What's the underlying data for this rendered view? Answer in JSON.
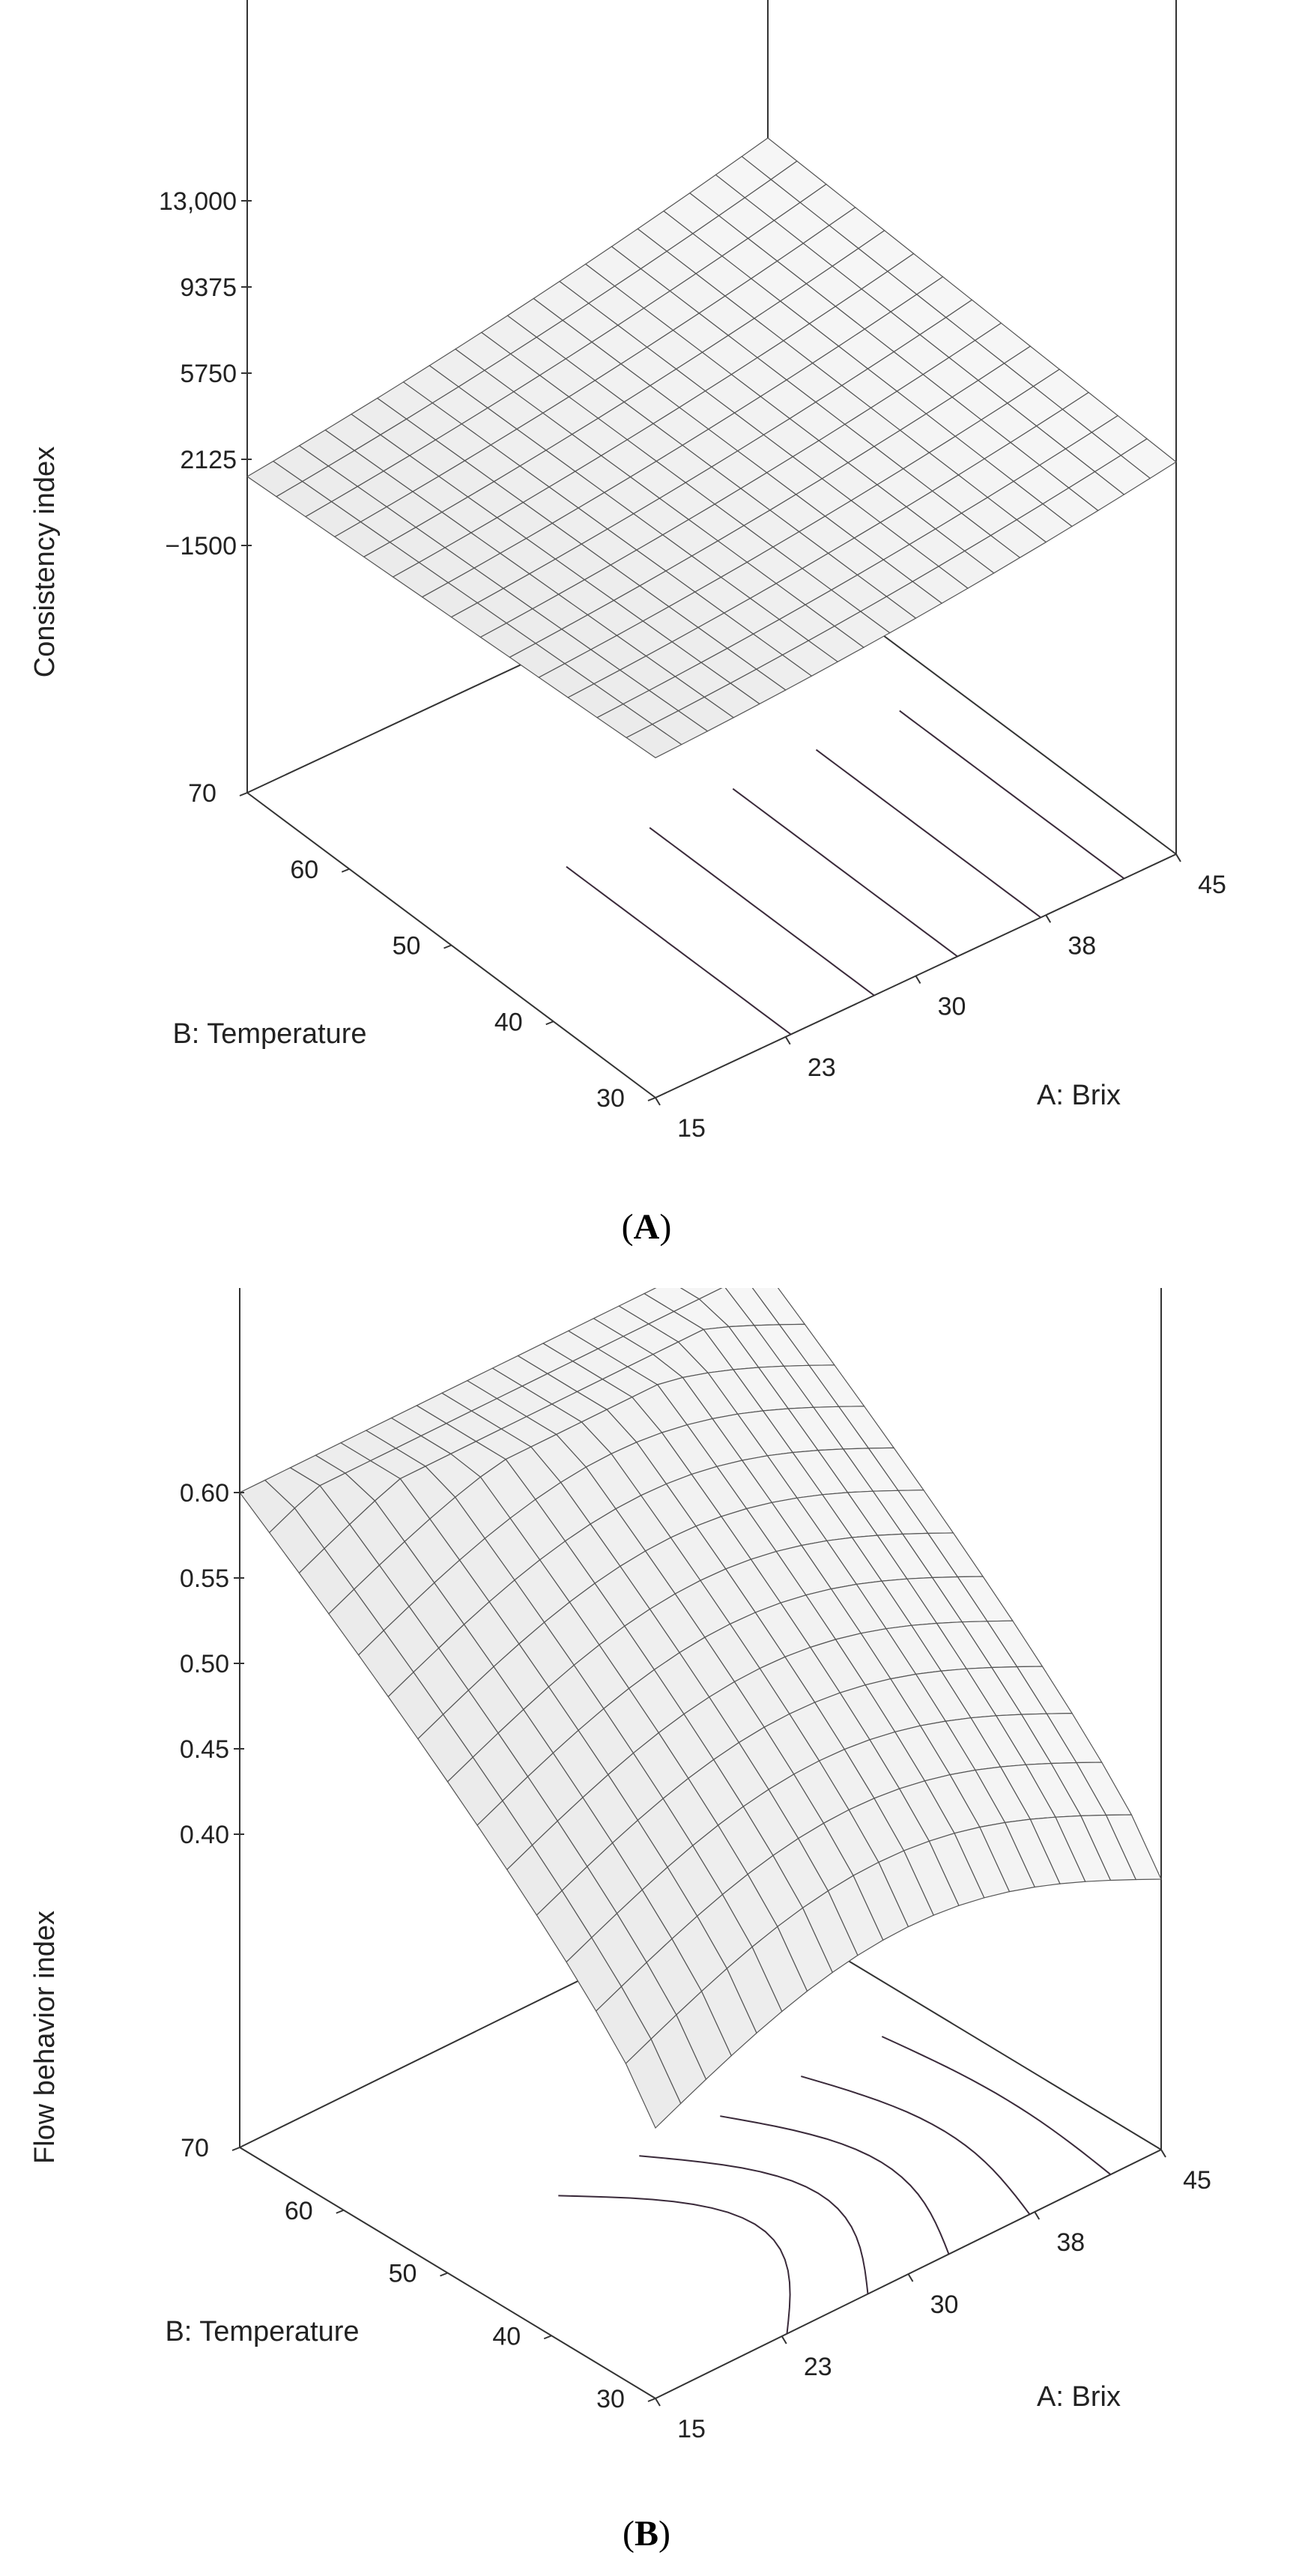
{
  "chart_data": [
    {
      "type": "surface",
      "caption": "A",
      "zlabel": "Consistency index",
      "xlabel": "A: Brix",
      "ylabel": "B: Temperature",
      "x_ticks": [
        "15",
        "23",
        "30",
        "38",
        "45"
      ],
      "y_ticks": [
        "30",
        "40",
        "50",
        "60",
        "70"
      ],
      "z_ticks": [
        "13,000",
        "9375",
        "5750",
        "2125",
        "−1500"
      ],
      "xlim": [
        15,
        45
      ],
      "ylim": [
        30,
        70
      ],
      "zlim": [
        -1500,
        13000
      ],
      "corner_values": {
        "brix_15_temp_30": 2400,
        "brix_45_temp_30": 4600,
        "brix_15_temp_70": 1400,
        "brix_45_temp_70": 5400
      }
    },
    {
      "type": "surface",
      "caption": "B",
      "zlabel": "Flow behavior index",
      "xlabel": "A: Brix",
      "ylabel": "B: Temperature",
      "x_ticks": [
        "15",
        "23",
        "30",
        "38",
        "45"
      ],
      "y_ticks": [
        "30",
        "40",
        "50",
        "60",
        "70"
      ],
      "z_ticks": [
        "0.60",
        "0.55",
        "0.50",
        "0.45",
        "0.40"
      ],
      "xlim": [
        15,
        45
      ],
      "ylim": [
        30,
        70
      ],
      "zlim": [
        0.4,
        0.6
      ],
      "corner_values": {
        "brix_15_temp_30": 0.375,
        "brix_45_temp_30": 0.375,
        "brix_15_temp_70": 0.6,
        "brix_45_temp_70": 0.6
      }
    }
  ]
}
